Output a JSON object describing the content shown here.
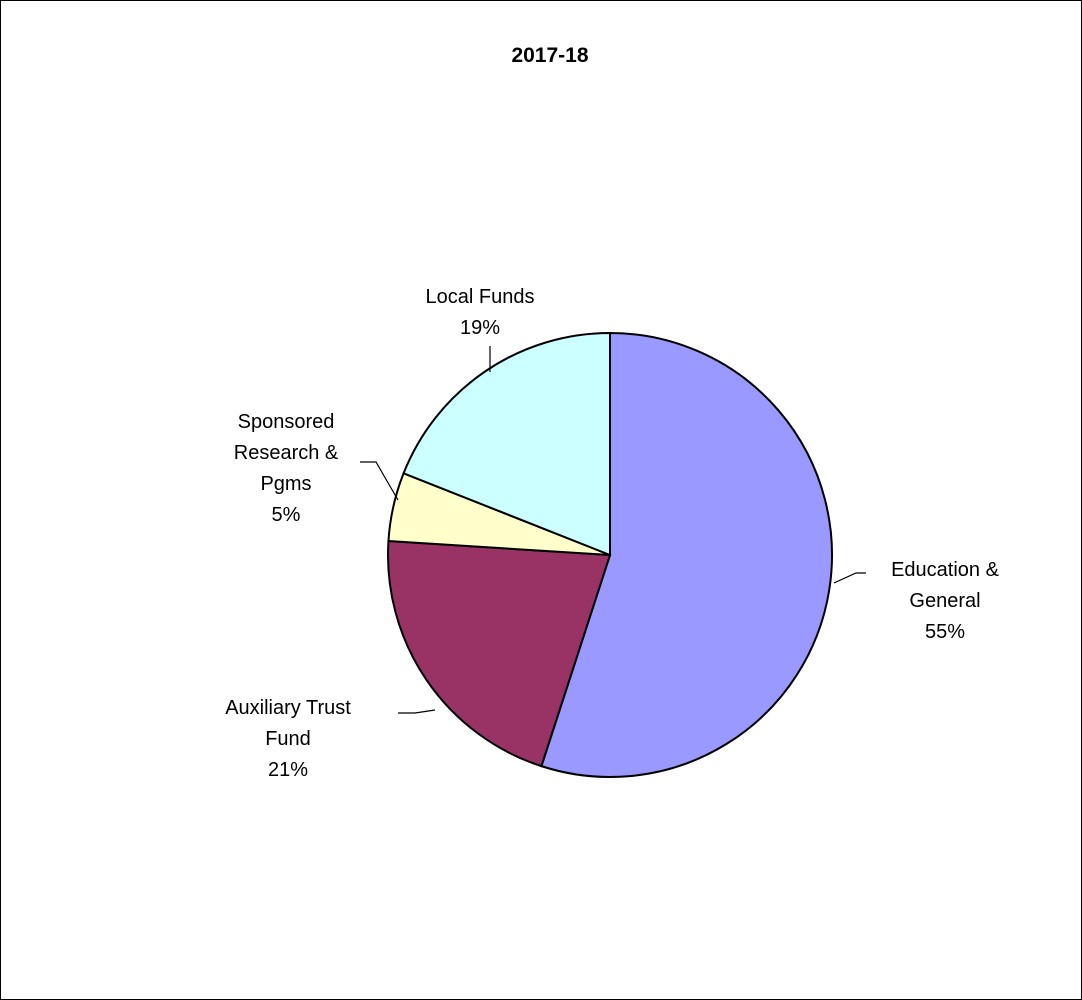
{
  "chart_data": {
    "type": "pie",
    "title": "2017-18",
    "slices": [
      {
        "label_lines": [
          "Education &",
          "General"
        ],
        "pct_label": "55%",
        "value": 55,
        "color": "#9999FF"
      },
      {
        "label_lines": [
          "Auxiliary Trust",
          "Fund"
        ],
        "pct_label": "21%",
        "value": 21,
        "color": "#993366"
      },
      {
        "label_lines": [
          "Sponsored",
          "Research &",
          "Pgms"
        ],
        "pct_label": "5%",
        "value": 5,
        "color": "#FFFFCC"
      },
      {
        "label_lines": [
          "Local Funds"
        ],
        "pct_label": "19%",
        "value": 19,
        "color": "#CCFFFF"
      }
    ],
    "start": "12 o'clock",
    "direction": "clockwise",
    "legend": "none"
  }
}
